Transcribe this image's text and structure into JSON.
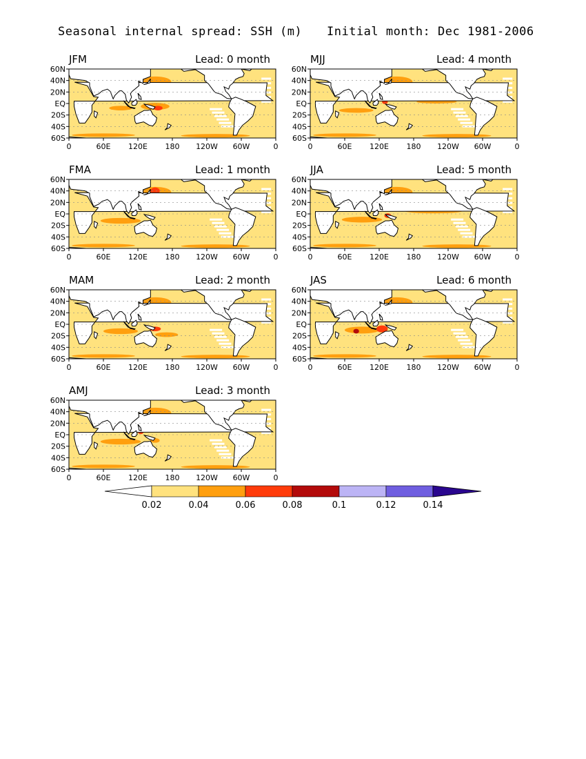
{
  "header": {
    "title_left": "Seasonal internal spread: SSH (m)",
    "title_right": "Initial month: Dec 1981-2006"
  },
  "panels": [
    {
      "season": "JFM",
      "lead": "Lead: 0 month"
    },
    {
      "season": "FMA",
      "lead": "Lead: 1 month"
    },
    {
      "season": "MAM",
      "lead": "Lead: 2 month"
    },
    {
      "season": "AMJ",
      "lead": "Lead: 3 month"
    },
    {
      "season": "MJJ",
      "lead": "Lead: 4 month"
    },
    {
      "season": "JJA",
      "lead": "Lead: 5 month"
    },
    {
      "season": "JAS",
      "lead": "Lead: 6 month"
    }
  ],
  "axes": {
    "lat_ticks": [
      "60N",
      "40N",
      "20N",
      "EQ",
      "20S",
      "40S",
      "60S"
    ],
    "lon_ticks": [
      "0",
      "60E",
      "120E",
      "180",
      "120W",
      "60W",
      "0"
    ]
  },
  "colorbar": {
    "boundaries": [
      "0.02",
      "0.04",
      "0.06",
      "0.08",
      "0.1",
      "0.12",
      "0.14"
    ],
    "colors": [
      "#ffffff",
      "#ffe27e",
      "#ff9f0f",
      "#ff3b0a",
      "#b30a0a",
      "#bcb4f5",
      "#6f5ee0",
      "#2a068f"
    ]
  }
}
